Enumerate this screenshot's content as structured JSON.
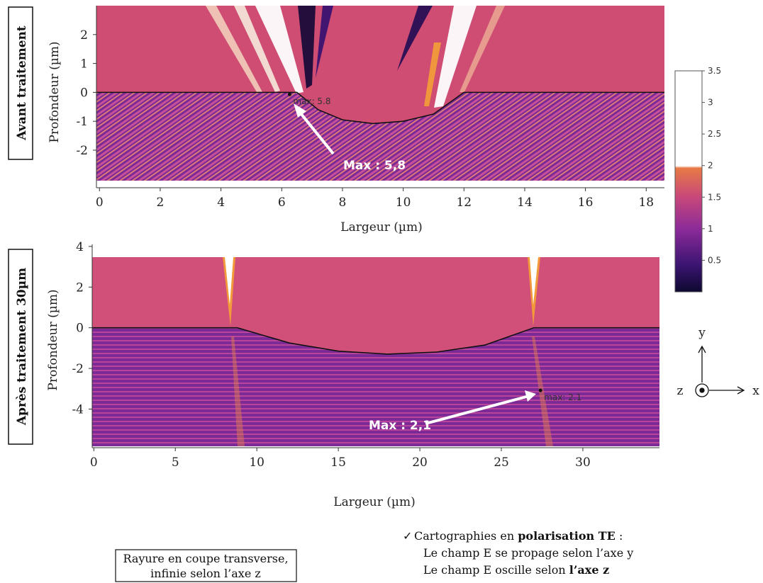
{
  "chart_data": [
    {
      "type": "field-map",
      "panel_label": "Avant traitement",
      "xlabel": "Largeur (µm)",
      "ylabel": "Profondeur (µm)",
      "xlim": [
        -0.1,
        18.6
      ],
      "ylim": [
        -3.3,
        3.0
      ],
      "xticks": [
        0,
        2,
        4,
        6,
        8,
        10,
        12,
        14,
        16,
        18
      ],
      "yticks": [
        -2,
        -1,
        0,
        1,
        2
      ],
      "surface": {
        "x": [
          -0.1,
          6.5,
          7.2,
          8,
          9,
          10,
          11,
          11.6,
          12,
          18.6
        ],
        "y": [
          0,
          0,
          -0.6,
          -0.95,
          -1.08,
          -1.0,
          -0.75,
          -0.3,
          0,
          0
        ]
      },
      "max": {
        "x": 6.26,
        "y": -0.07,
        "value": 5.8,
        "label": "max: 5.8",
        "callout": "Max : 5,8"
      }
    },
    {
      "type": "field-map",
      "panel_label": "Après traitement 30µm",
      "xlabel": "Largeur (µm)",
      "ylabel": "Profondeur (µm)",
      "xlim": [
        -0.1,
        34.7
      ],
      "ylim": [
        -5.9,
        4.1
      ],
      "xticks": [
        0,
        5,
        10,
        15,
        20,
        25,
        30
      ],
      "yticks": [
        -4,
        -2,
        0,
        2,
        4
      ],
      "surface": {
        "x": [
          -0.1,
          8.8,
          12,
          15,
          18,
          21,
          24,
          27,
          34.7
        ],
        "y": [
          0,
          0,
          -0.75,
          -1.15,
          -1.3,
          -1.2,
          -0.85,
          0,
          0
        ]
      },
      "max": {
        "x": 27.4,
        "y": -3.08,
        "value": 2.1,
        "label": "max: 2.1",
        "callout": "Max : 2,1"
      }
    }
  ],
  "colorbar": {
    "ylim": [
      0,
      3.5
    ],
    "yticks": [
      0.5,
      1,
      1.5,
      2,
      2.5,
      3,
      3.5
    ]
  },
  "axes_triad": {
    "y": "y",
    "z": "z",
    "x": "x"
  },
  "note_box": [
    "Rayure en coupe transverse,",
    "infinie selon l’axe z"
  ],
  "bullet": {
    "mark": "✓",
    "lines": [
      [
        "Cartographies en ",
        "polarisation TE",
        " :"
      ],
      [
        "Le champ E se propage selon l’axe y"
      ],
      [
        "Le champ E oscille selon ",
        "l’axe z"
      ]
    ]
  }
}
